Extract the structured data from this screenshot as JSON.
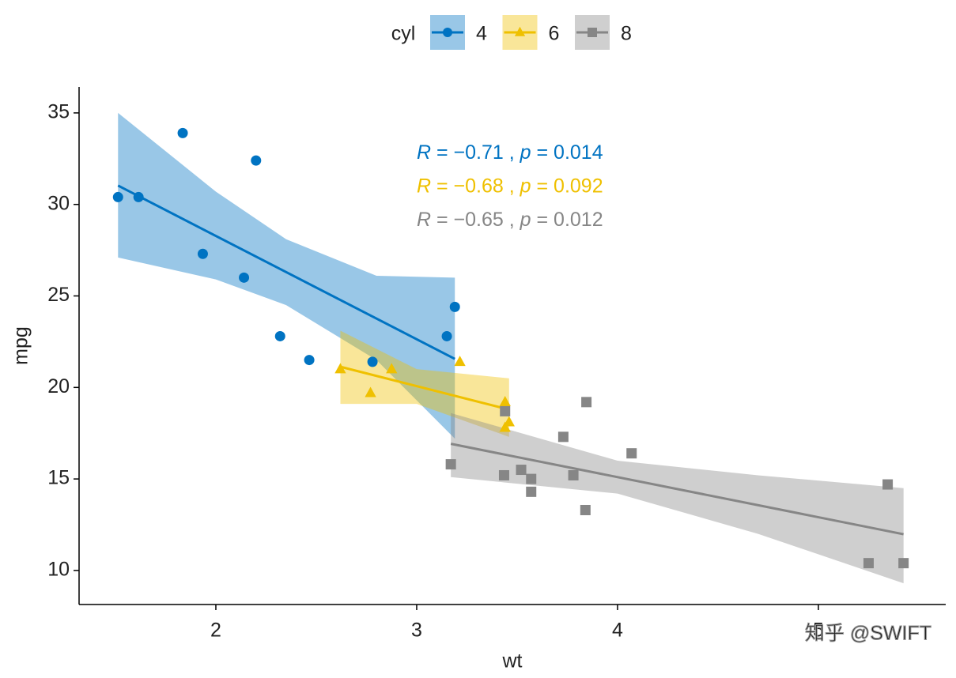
{
  "chart_data": {
    "type": "scatter",
    "x_label": "wt",
    "y_label": "mpg",
    "xlim": [
      1.319,
      5.634
    ],
    "ylim": [
      8.14,
      36.42
    ],
    "xticks": [
      2,
      3,
      4,
      5
    ],
    "yticks": [
      10,
      15,
      20,
      25,
      30,
      35
    ],
    "grid": false,
    "legend": "top",
    "legend_title": "cyl",
    "watermark": "知乎 @SWIFT",
    "series": [
      {
        "name": "4",
        "color": "#0073C2",
        "marker": "circle",
        "x": [
          2.32,
          3.19,
          3.15,
          2.2,
          1.615,
          1.835,
          2.465,
          1.935,
          2.14,
          1.513,
          2.78
        ],
        "values": [
          22.8,
          24.4,
          22.8,
          32.4,
          30.4,
          33.9,
          21.5,
          27.3,
          26.0,
          30.4,
          21.4
        ],
        "fit_x": [
          1.513,
          3.19
        ],
        "fit_y": [
          31.03,
          21.56
        ],
        "ci_x": [
          1.513,
          2.0,
          2.35,
          2.8,
          3.19
        ],
        "ci_lower": [
          27.1,
          25.9,
          24.5,
          21.5,
          17.2
        ],
        "ci_upper": [
          35.0,
          30.7,
          28.1,
          26.1,
          26.0
        ],
        "annotation": [
          "R",
          " = −0.71 , ",
          "p",
          " = 0.014"
        ]
      },
      {
        "name": "6",
        "color": "#EFC000",
        "marker": "triangle",
        "x": [
          2.62,
          2.875,
          3.215,
          3.46,
          3.44,
          3.44,
          2.77
        ],
        "values": [
          21.0,
          21.0,
          21.4,
          18.1,
          19.2,
          17.8,
          19.7
        ],
        "fit_x": [
          2.62,
          3.46
        ],
        "fit_y": [
          21.13,
          18.79
        ],
        "ci_x": [
          2.62,
          3.0,
          3.46
        ],
        "ci_lower": [
          19.1,
          19.1,
          17.3
        ],
        "ci_upper": [
          23.1,
          21.0,
          20.5
        ],
        "annotation": [
          "R",
          " = −0.68 , ",
          "p",
          " = 0.092"
        ]
      },
      {
        "name": "8",
        "color": "#868686",
        "marker": "square",
        "x": [
          3.44,
          3.57,
          4.07,
          3.73,
          3.78,
          5.25,
          5.424,
          5.345,
          3.52,
          3.435,
          3.84,
          3.845,
          3.17,
          3.57
        ],
        "values": [
          18.7,
          14.3,
          16.4,
          17.3,
          15.2,
          10.4,
          10.4,
          14.7,
          15.5,
          15.2,
          13.3,
          19.2,
          15.8,
          15.0
        ],
        "fit_x": [
          3.17,
          5.424
        ],
        "fit_y": [
          16.92,
          11.98
        ],
        "ci_x": [
          3.17,
          4.0,
          4.7,
          5.424
        ],
        "ci_lower": [
          15.1,
          14.2,
          12.0,
          9.3
        ],
        "ci_upper": [
          18.6,
          16.0,
          15.2,
          14.5
        ],
        "annotation": [
          "R",
          " = −0.65 , ",
          "p",
          " = 0.012"
        ]
      }
    ]
  }
}
